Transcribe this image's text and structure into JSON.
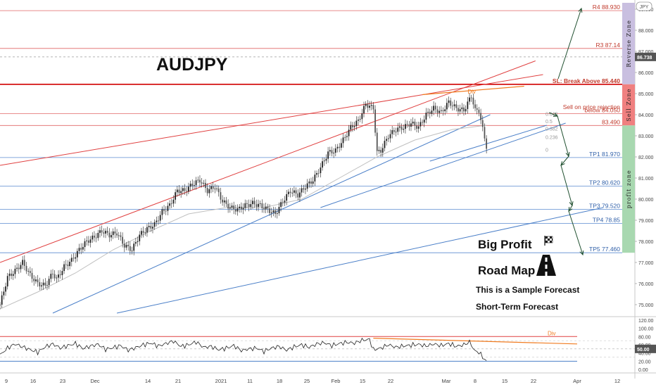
{
  "chart_data": {
    "type": "line",
    "symbol": "AUDJPY",
    "currency_badge": "JPY",
    "title": "AUDJPY",
    "ylim": [
      74.5,
      89.3
    ],
    "y_ticks": [
      "89.000",
      "88.000",
      "87.000",
      "86.000",
      "85.000",
      "84.000",
      "83.000",
      "82.000",
      "81.000",
      "80.000",
      "79.000",
      "78.000",
      "77.000",
      "76.000",
      "75.000"
    ],
    "current_price": "86.738",
    "x_tick_labels": [
      "9",
      "16",
      "23",
      "Dec",
      "14",
      "21",
      "2021",
      "11",
      "18",
      "25",
      "Feb",
      "15",
      "22",
      "Mar",
      "8",
      "15",
      "22",
      "Apr",
      "12"
    ],
    "levels": [
      {
        "name": "r4",
        "label": "R4 88.930",
        "value": 88.93,
        "color": "#e06666"
      },
      {
        "name": "r3",
        "label": "R3 87.14",
        "value": 87.14,
        "color": "#e06666"
      },
      {
        "name": "sl",
        "label": "SL: Break Above 85.440",
        "value": 85.44,
        "color": "#d00000"
      },
      {
        "name": "sell-note",
        "label": "Sell on price rejection",
        "value": 84.2,
        "color": "#e06666"
      },
      {
        "name": "below",
        "label": "below 84.050",
        "value": 84.05,
        "color": "#e06666"
      },
      {
        "name": "entry",
        "label": "83.490",
        "value": 83.49,
        "color": "#e06666"
      },
      {
        "name": "tp1",
        "label": "TP1 81.970",
        "value": 81.97,
        "color": "#5b8bd0"
      },
      {
        "name": "tp2",
        "label": "TP2 80.620",
        "value": 80.62,
        "color": "#5b8bd0"
      },
      {
        "name": "tp3",
        "label": "TP3 79.520",
        "value": 79.52,
        "color": "#5b8bd0"
      },
      {
        "name": "tp4",
        "label": "TP4 78.85",
        "value": 78.85,
        "color": "#5b8bd0"
      },
      {
        "name": "tp5",
        "label": "TP5 77.460",
        "value": 77.46,
        "color": "#5b8bd0"
      }
    ],
    "zones": [
      {
        "name": "reverse-zone",
        "label": "Reverse Zone",
        "from": 85.44,
        "to": 89.3,
        "color": "#c9bfe0"
      },
      {
        "name": "sell-zone",
        "label": "Sell Zone",
        "from": 83.49,
        "to": 85.44,
        "color": "#f08080"
      },
      {
        "name": "profit-zone",
        "label": "profit zone",
        "from": 77.46,
        "to": 83.49,
        "color": "#a8d8b0"
      }
    ],
    "fib_labels": [
      "0.618",
      "0.5",
      "0.382",
      "0.236",
      "0"
    ],
    "div_label": "Div",
    "annotations": [
      "Big Profit",
      "Road Map",
      "This is a Sample Forecast",
      "Short-Term Forecast"
    ],
    "price_series": [
      [
        0,
        75.0
      ],
      [
        4,
        76.3
      ],
      [
        8,
        76.6
      ],
      [
        12,
        77.0
      ],
      [
        16,
        76.4
      ],
      [
        20,
        76.0
      ],
      [
        24,
        75.9
      ],
      [
        28,
        76.5
      ],
      [
        30,
        76.2
      ],
      [
        34,
        76.8
      ],
      [
        38,
        77.1
      ],
      [
        42,
        77.6
      ],
      [
        46,
        78.0
      ],
      [
        50,
        78.2
      ],
      [
        54,
        78.5
      ],
      [
        58,
        78.3
      ],
      [
        62,
        78.4
      ],
      [
        66,
        77.8
      ],
      [
        70,
        77.6
      ],
      [
        74,
        78.3
      ],
      [
        78,
        78.6
      ],
      [
        82,
        78.8
      ],
      [
        86,
        79.4
      ],
      [
        90,
        79.7
      ],
      [
        94,
        80.4
      ],
      [
        98,
        80.4
      ],
      [
        102,
        80.7
      ],
      [
        106,
        80.9
      ],
      [
        110,
        80.4
      ],
      [
        114,
        80.6
      ],
      [
        118,
        79.9
      ],
      [
        122,
        79.6
      ],
      [
        126,
        79.5
      ],
      [
        130,
        79.7
      ],
      [
        134,
        79.8
      ],
      [
        138,
        79.7
      ],
      [
        142,
        79.5
      ],
      [
        146,
        79.3
      ],
      [
        150,
        79.9
      ],
      [
        154,
        80.4
      ],
      [
        158,
        80.2
      ],
      [
        162,
        80.6
      ],
      [
        166,
        80.9
      ],
      [
        170,
        81.5
      ],
      [
        174,
        82.2
      ],
      [
        178,
        82.3
      ],
      [
        182,
        82.8
      ],
      [
        186,
        83.4
      ],
      [
        190,
        83.7
      ],
      [
        194,
        84.5
      ],
      [
        198,
        84.3
      ],
      [
        200,
        82.2
      ],
      [
        202,
        82.3
      ],
      [
        206,
        83.0
      ],
      [
        210,
        83.3
      ],
      [
        214,
        83.4
      ],
      [
        218,
        83.6
      ],
      [
        222,
        83.4
      ],
      [
        226,
        84.0
      ],
      [
        230,
        84.3
      ],
      [
        234,
        84.1
      ],
      [
        238,
        84.6
      ],
      [
        242,
        84.3
      ],
      [
        246,
        84.2
      ],
      [
        250,
        84.9
      ],
      [
        252,
        84.2
      ],
      [
        254,
        84.2
      ],
      [
        256,
        83.3
      ],
      [
        258,
        82.5
      ]
    ],
    "ma_series": [
      [
        0,
        74.8
      ],
      [
        20,
        75.6
      ],
      [
        40,
        76.5
      ],
      [
        60,
        77.6
      ],
      [
        80,
        78.5
      ],
      [
        100,
        79.3
      ],
      [
        120,
        79.6
      ],
      [
        140,
        79.6
      ],
      [
        160,
        80.0
      ],
      [
        180,
        81.0
      ],
      [
        200,
        82.0
      ],
      [
        220,
        82.8
      ],
      [
        240,
        83.3
      ],
      [
        258,
        83.5
      ]
    ],
    "rsi_panel": {
      "ylim": [
        -5,
        125
      ],
      "ticks": [
        "120.00",
        "100.00",
        "80.00",
        "60.00",
        "40.00",
        "20.00",
        "0.00"
      ],
      "current": "50.00",
      "overbought": 80,
      "oversold": 20,
      "div_label": "Div",
      "series": [
        [
          0,
          35
        ],
        [
          4,
          52
        ],
        [
          8,
          62
        ],
        [
          12,
          55
        ],
        [
          16,
          48
        ],
        [
          20,
          42
        ],
        [
          24,
          55
        ],
        [
          28,
          62
        ],
        [
          32,
          52
        ],
        [
          36,
          58
        ],
        [
          40,
          63
        ],
        [
          44,
          51
        ],
        [
          48,
          57
        ],
        [
          52,
          61
        ],
        [
          56,
          49
        ],
        [
          60,
          53
        ],
        [
          64,
          58
        ],
        [
          68,
          47
        ],
        [
          72,
          53
        ],
        [
          76,
          60
        ],
        [
          80,
          64
        ],
        [
          84,
          57
        ],
        [
          88,
          63
        ],
        [
          92,
          69
        ],
        [
          96,
          56
        ],
        [
          100,
          60
        ],
        [
          104,
          67
        ],
        [
          108,
          54
        ],
        [
          112,
          56
        ],
        [
          116,
          48
        ],
        [
          120,
          52
        ],
        [
          124,
          58
        ],
        [
          128,
          46
        ],
        [
          132,
          50
        ],
        [
          136,
          52
        ],
        [
          140,
          44
        ],
        [
          144,
          52
        ],
        [
          148,
          56
        ],
        [
          152,
          47
        ],
        [
          156,
          55
        ],
        [
          160,
          60
        ],
        [
          164,
          54
        ],
        [
          168,
          62
        ],
        [
          172,
          65
        ],
        [
          176,
          58
        ],
        [
          180,
          63
        ],
        [
          184,
          66
        ],
        [
          188,
          64
        ],
        [
          192,
          71
        ],
        [
          196,
          73
        ],
        [
          198,
          48
        ],
        [
          202,
          52
        ],
        [
          206,
          60
        ],
        [
          210,
          54
        ],
        [
          214,
          57
        ],
        [
          218,
          59
        ],
        [
          222,
          61
        ],
        [
          226,
          57
        ],
        [
          230,
          62
        ],
        [
          234,
          58
        ],
        [
          238,
          63
        ],
        [
          242,
          56
        ],
        [
          246,
          60
        ],
        [
          249,
          67
        ],
        [
          252,
          44
        ],
        [
          254,
          42
        ],
        [
          256,
          30
        ],
        [
          258,
          20
        ]
      ]
    }
  }
}
